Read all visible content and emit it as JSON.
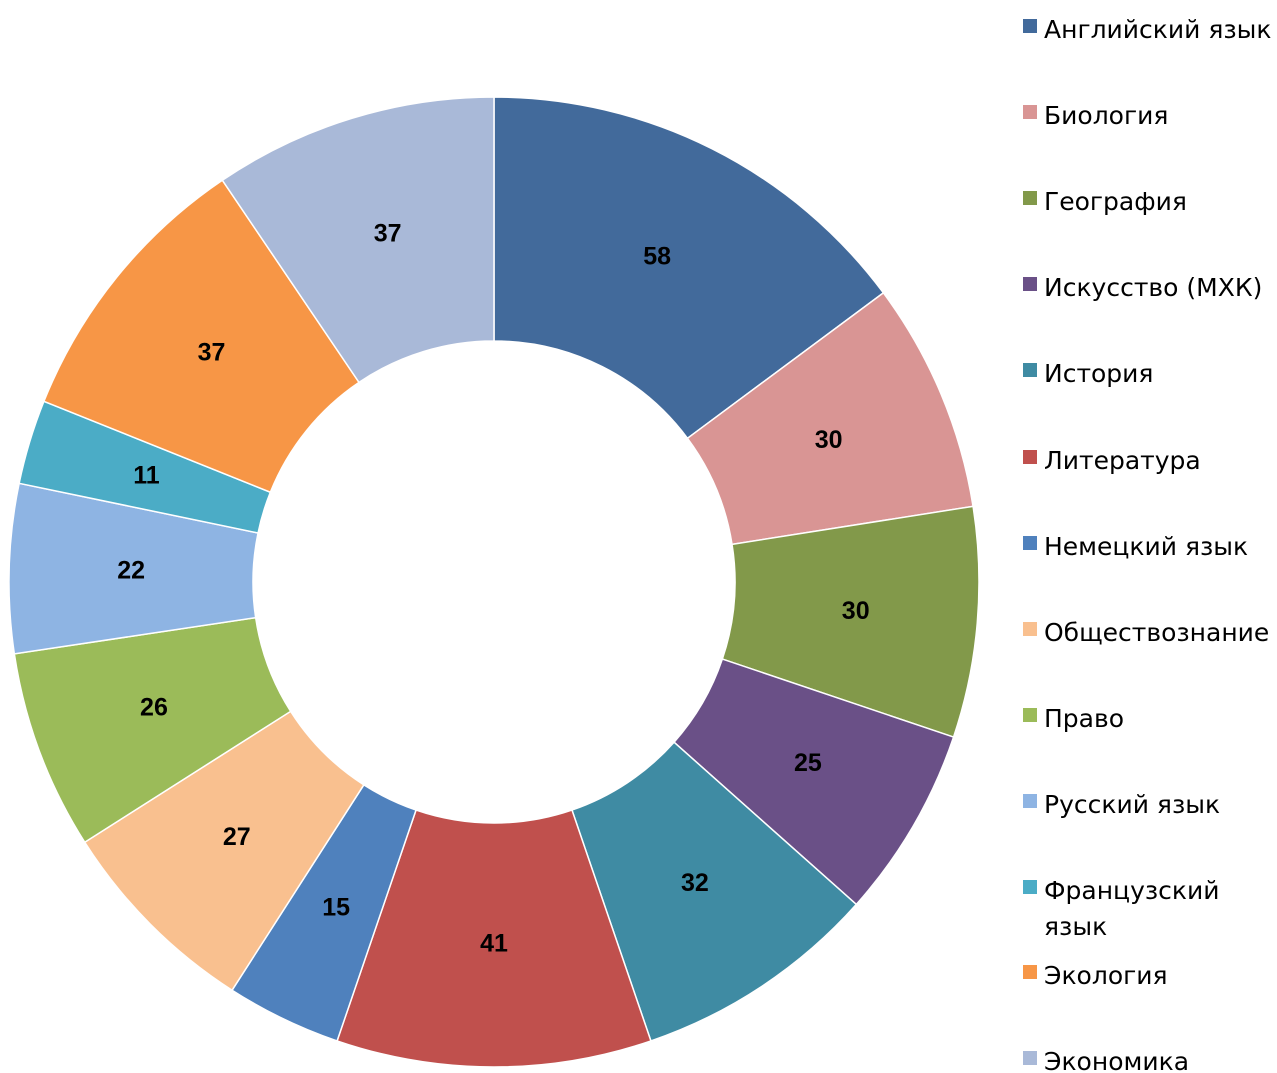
{
  "chart_data": {
    "type": "donut",
    "categories": [
      "Английский язык",
      "Биология",
      "География",
      "Искусство (МХК)",
      "История",
      "Литература",
      "Немецкий язык",
      "Обществознание",
      "Право",
      "Русский язык",
      "Французский язык",
      "Экология",
      "Экономика"
    ],
    "values": [
      58,
      30,
      30,
      25,
      32,
      41,
      15,
      27,
      26,
      22,
      11,
      37,
      37
    ],
    "colors": [
      "#426a9b",
      "#d99594",
      "#82994a",
      "#6a5087",
      "#3f8ba3",
      "#c0504d",
      "#4f81bd",
      "#f9c08f",
      "#9bbb59",
      "#8eb4e3",
      "#4bacc6",
      "#f79646",
      "#a9b9d8"
    ],
    "legend": "right"
  }
}
